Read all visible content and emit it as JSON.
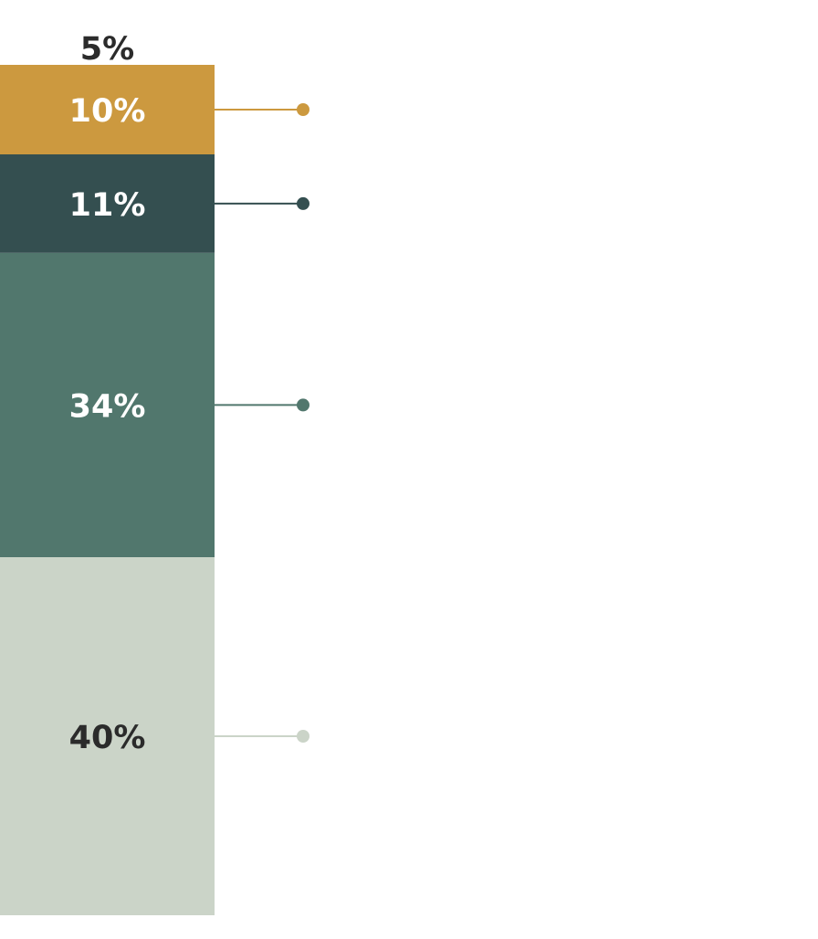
{
  "chart_data": {
    "type": "bar",
    "stacked": true,
    "orientation": "vertical",
    "categories": [
      ""
    ],
    "series": [
      {
        "label": "5%",
        "values": [
          5
        ],
        "color": "#ffffff",
        "label_color": "#2b2b2b",
        "label_position": "above"
      },
      {
        "label": "10%",
        "values": [
          10
        ],
        "color": "#cc993f",
        "label_color": "#ffffff",
        "connector": true
      },
      {
        "label": "11%",
        "values": [
          11
        ],
        "color": "#344f50",
        "label_color": "#ffffff",
        "connector": true
      },
      {
        "label": "34%",
        "values": [
          34
        ],
        "color": "#51776d",
        "label_color": "#ffffff",
        "connector": true
      },
      {
        "label": "40%",
        "values": [
          40
        ],
        "color": "#cbd4c8",
        "label_color": "#2b2b2b",
        "connector": true
      }
    ],
    "title": "",
    "xlabel": "",
    "ylabel": "",
    "ylim": [
      0,
      100
    ],
    "legend": "none",
    "grid": false
  }
}
